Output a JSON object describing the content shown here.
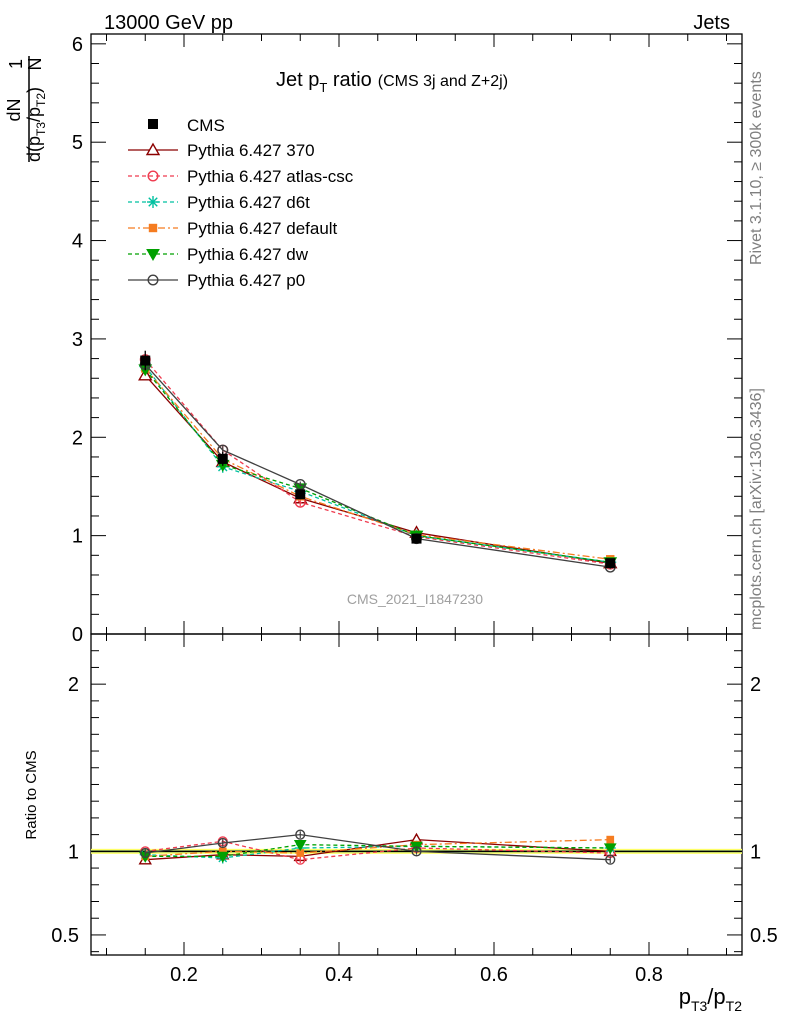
{
  "header": {
    "left": "13000 GeV pp",
    "right": "Jets"
  },
  "side_labels": {
    "rivet": "Rivet 3.1.10, ≥ 300k events",
    "mcplots": "mcplots.cern.ch [arXiv:1306.3436]"
  },
  "analysis_id": "CMS_2021_I1847230",
  "chart_data": {
    "type": "line",
    "title_main": "Jet p",
    "title_sub": "T",
    "title_rest": " ratio",
    "title_note": "(CMS 3j and Z+2j)",
    "y_label": {
      "one": "1",
      "N": "N",
      "dN": "dN",
      "d": "d(p",
      "t3": "T3",
      "slash": "/p",
      "t2": "T2",
      "close": ")"
    },
    "x_label": {
      "p1": "p",
      "s1": "T3",
      "mid": "/p",
      "s2": "T2"
    },
    "ratio_ylabel": "Ratio to CMS",
    "x": [
      0.15,
      0.25,
      0.35,
      0.5,
      0.75
    ],
    "xlim": [
      0.08,
      0.92
    ],
    "ylim_main": [
      0,
      6.1
    ],
    "ylim_ratio": [
      0.38,
      2.3
    ],
    "x_ticks": [
      0.2,
      0.4,
      0.6,
      0.8
    ],
    "x_tick_labels": [
      "0.2",
      "0.4",
      "0.6",
      "0.8"
    ],
    "y_ticks_main": [
      0,
      1,
      2,
      3,
      4,
      5,
      6
    ],
    "y_tick_labels_main": [
      "0",
      "1",
      "2",
      "3",
      "4",
      "5",
      "6"
    ],
    "y_ticks_ratio": [
      0.5,
      1,
      2
    ],
    "y_tick_labels_ratio": [
      "0.5",
      "1",
      "2"
    ],
    "reference": {
      "name": "CMS",
      "values": [
        2.78,
        1.78,
        1.42,
        0.97,
        0.72
      ],
      "errors": [
        0.1,
        0.07,
        0.05,
        0.03,
        0.03
      ]
    },
    "series": [
      {
        "name": "Pythia 6.427 370",
        "color": "#8b0000",
        "marker": "triangle-open",
        "dash": "",
        "values": [
          2.63,
          1.75,
          1.38,
          1.03,
          0.72
        ],
        "errors": [
          0.04,
          0.03,
          0.03,
          0.02,
          0.02
        ],
        "ratio": [
          0.95,
          0.98,
          0.97,
          1.07,
          1.0
        ]
      },
      {
        "name": "Pythia 6.427 atlas-csc",
        "color": "#ef3b4f",
        "marker": "circle-open",
        "dash": "4,3",
        "values": [
          2.79,
          1.87,
          1.34,
          0.99,
          0.71
        ],
        "errors": [
          0.05,
          0.04,
          0.04,
          0.02,
          0.02
        ],
        "ratio": [
          1.0,
          1.06,
          0.95,
          1.02,
          0.99
        ]
      },
      {
        "name": "Pythia 6.427 d6t",
        "color": "#00c0a0",
        "marker": "star",
        "dash": "4,3",
        "values": [
          2.72,
          1.7,
          1.45,
          1.0,
          0.73
        ],
        "errors": [
          0.05,
          0.04,
          0.03,
          0.02,
          0.02
        ],
        "ratio": [
          0.98,
          0.96,
          1.02,
          1.03,
          1.02
        ]
      },
      {
        "name": "Pythia 6.427 default",
        "color": "#f57c20",
        "marker": "square-filled",
        "dash": "7,3,2,3",
        "values": [
          2.7,
          1.78,
          1.4,
          1.01,
          0.76
        ],
        "errors": [
          0.05,
          0.04,
          0.03,
          0.02,
          0.02
        ],
        "ratio": [
          0.97,
          1.0,
          0.99,
          1.04,
          1.07
        ]
      },
      {
        "name": "Pythia 6.427 dw",
        "color": "#00a000",
        "marker": "triangle-down-filled",
        "dash": "4,3",
        "values": [
          2.69,
          1.72,
          1.48,
          1.0,
          0.73
        ],
        "errors": [
          0.05,
          0.04,
          0.03,
          0.02,
          0.02
        ],
        "ratio": [
          0.97,
          0.97,
          1.04,
          1.03,
          1.02
        ]
      },
      {
        "name": "Pythia 6.427 p0",
        "color": "#404040",
        "marker": "circle-open",
        "dash": "",
        "values": [
          2.74,
          1.87,
          1.52,
          0.97,
          0.68
        ],
        "errors": [
          0.05,
          0.04,
          0.03,
          0.02,
          0.02
        ],
        "ratio": [
          0.99,
          1.05,
          1.1,
          1.0,
          0.95
        ]
      }
    ]
  }
}
